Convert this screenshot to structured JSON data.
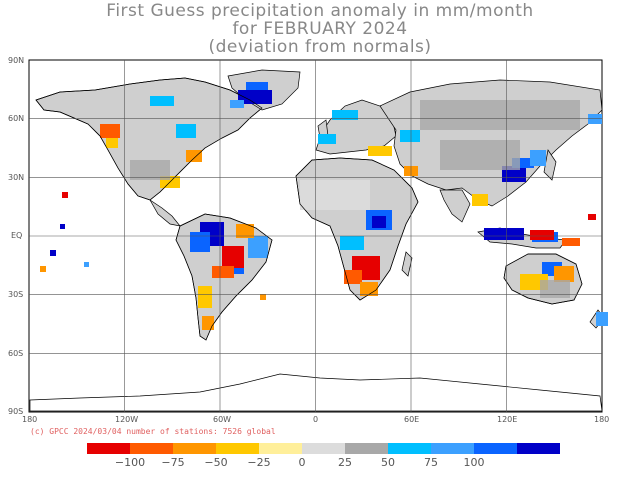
{
  "title": {
    "line1": "First Guess precipitation anomaly in mm/month",
    "line2": "for FEBRUARY 2024",
    "line3": "(deviation from normals)"
  },
  "axes": {
    "lat_ticks": [
      "90N",
      "60N",
      "30N",
      "EQ",
      "30S",
      "60S",
      "90S"
    ],
    "lon_ticks": [
      "180",
      "120W",
      "60W",
      "0",
      "60E",
      "120E",
      "180"
    ]
  },
  "credit": "(c) GPCC 2024/03/04 number of stations: 7526 global",
  "colorbar": {
    "colors": [
      "#e60000",
      "#ff5a00",
      "#ff9600",
      "#ffc800",
      "#ffef9a",
      "#dcdcdc",
      "#a8a8a8",
      "#00bfff",
      "#3ca0ff",
      "#0a64ff",
      "#0000c8"
    ],
    "labels": [
      "−100",
      "−75",
      "−50",
      "−25",
      "0",
      "25",
      "50",
      "75",
      "100"
    ]
  }
}
